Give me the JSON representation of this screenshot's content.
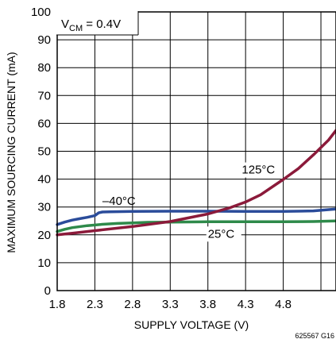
{
  "chart_data": {
    "type": "line",
    "xlabel": "SUPPLY VOLTAGE (V)",
    "ylabel": "MAXIMUM SOURCING CURRENT (mA)",
    "xlim": [
      1.8,
      5.5
    ],
    "ylim": [
      0,
      100
    ],
    "x_ticks": [
      "1.8",
      "2.3",
      "2.8",
      "3.3",
      "3.8",
      "4.3",
      "4.8"
    ],
    "y_ticks": [
      "0",
      "10",
      "20",
      "30",
      "40",
      "50",
      "60",
      "70",
      "80",
      "90",
      "100"
    ],
    "grid": true,
    "condition_label": {
      "base": "V",
      "sub": "CM",
      "rest": " = 0.4V"
    },
    "figure_id": "625567 G16",
    "series": [
      {
        "name": "–40°C",
        "color": "#2b4c9a",
        "x": [
          1.8,
          1.9,
          2.0,
          2.1,
          2.2,
          2.3,
          2.35,
          2.4,
          2.5,
          2.8,
          3.3,
          3.8,
          4.3,
          4.8,
          5.2,
          5.5
        ],
        "y": [
          23.7,
          24.6,
          25.3,
          25.8,
          26.3,
          26.9,
          27.9,
          28.2,
          28.3,
          28.4,
          28.5,
          28.5,
          28.4,
          28.4,
          28.6,
          29.3
        ]
      },
      {
        "name": "25°C",
        "color": "#2e8a4a",
        "x": [
          1.8,
          1.9,
          2.0,
          2.2,
          2.4,
          2.6,
          2.8,
          3.0,
          3.3,
          3.8,
          4.3,
          4.8,
          5.2,
          5.5
        ],
        "y": [
          21.2,
          22.0,
          22.6,
          23.3,
          23.8,
          24.1,
          24.3,
          24.5,
          24.6,
          24.7,
          24.7,
          24.7,
          24.8,
          25.0
        ]
      },
      {
        "name": "125°C",
        "color": "#8b1a3a",
        "x": [
          1.8,
          2.0,
          2.3,
          2.8,
          3.3,
          3.8,
          4.1,
          4.3,
          4.5,
          4.8,
          5.0,
          5.2,
          5.4,
          5.5
        ],
        "y": [
          20.0,
          20.6,
          21.5,
          23.0,
          24.8,
          27.5,
          29.8,
          31.8,
          34.4,
          39.9,
          43.8,
          48.7,
          54.0,
          57.5
        ]
      }
    ]
  }
}
